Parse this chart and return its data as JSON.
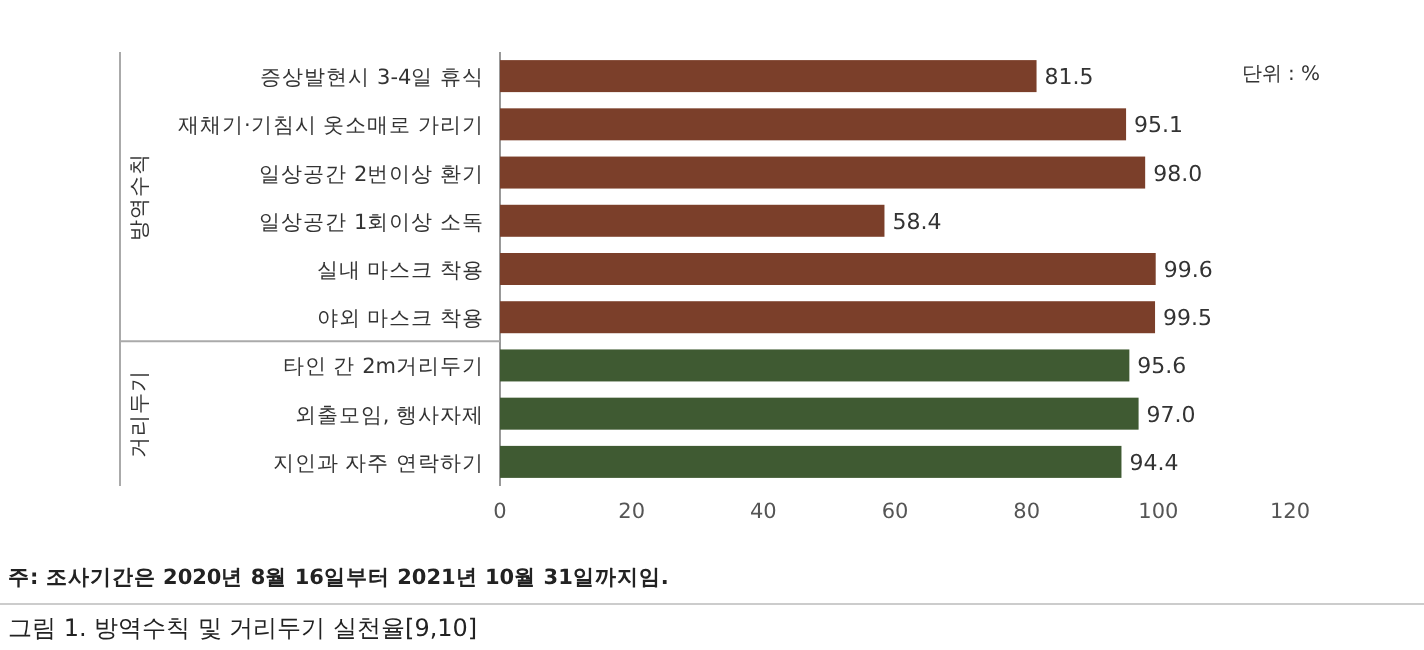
{
  "chart_data": {
    "type": "bar",
    "orientation": "horizontal",
    "categories": [
      "증상발현시  3-4일 휴식",
      "재채기·기침시 옷소매로 가리기",
      "일상공간 2번이상 환기",
      "일상공간 1회이상 소독",
      "실내 마스크 착용",
      "야외 마스크 착용",
      "타인 간 2m거리두기",
      "외출모임, 행사자제",
      "지인과 자주 연락하기"
    ],
    "values": [
      81.5,
      95.1,
      98.0,
      58.4,
      99.6,
      99.5,
      95.6,
      97.0,
      94.4
    ],
    "value_labels": [
      "81.5",
      "95.1",
      "98.0",
      "58.4",
      "99.6",
      "99.5",
      "95.6",
      "97.0",
      "94.4"
    ],
    "colors": [
      "#7b3f2a",
      "#7b3f2a",
      "#7b3f2a",
      "#7b3f2a",
      "#7b3f2a",
      "#7b3f2a",
      "#3f5a32",
      "#3f5a32",
      "#3f5a32"
    ],
    "xlim": [
      0,
      120
    ],
    "xticks": [
      0,
      20,
      40,
      60,
      80,
      100,
      120
    ],
    "title": "그림 1. 방역수칙 및 거리두기 실천율[9,10]",
    "annotations": [
      "단위 : %",
      "방역수칙",
      "거리두기",
      "주: 조사기간은 2020년 8월 16일부터 2021년 10월 31일까지임."
    ]
  }
}
